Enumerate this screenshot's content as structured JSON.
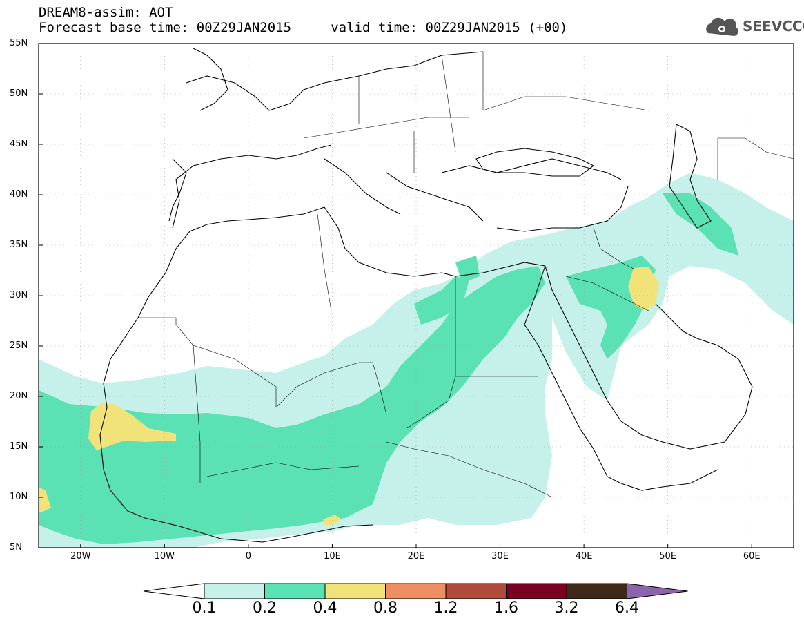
{
  "header": {
    "line1": "DREAM8-assim: AOT",
    "line2": "Forecast base time: 00Z29JAN2015     valid time: 00Z29JAN2015 (+00)",
    "logo_text": "SEEVCCC",
    "logo_icon": "cloud-gear-icon"
  },
  "map": {
    "lon_range": [
      -25,
      65
    ],
    "lat_range": [
      5,
      55
    ],
    "lat_labels": [
      "5N",
      "10N",
      "15N",
      "20N",
      "25N",
      "30N",
      "35N",
      "40N",
      "45N",
      "50N",
      "55N"
    ],
    "lon_labels": [
      "20W",
      "10W",
      "0",
      "10E",
      "20E",
      "30E",
      "40E",
      "50E",
      "60E"
    ],
    "grid": true
  },
  "colorbar": {
    "labels": [
      "0.1",
      "0.2",
      "0.4",
      "0.8",
      "1.2",
      "1.6",
      "3.2",
      "6.4"
    ],
    "colors": [
      "#c6f0ea",
      "#5ae1b4",
      "#f2e27a",
      "#ee8e62",
      "#b04a3a",
      "#7a0022",
      "#3e2818",
      "#8c64aa"
    ],
    "under_color": "#ffffff"
  }
}
